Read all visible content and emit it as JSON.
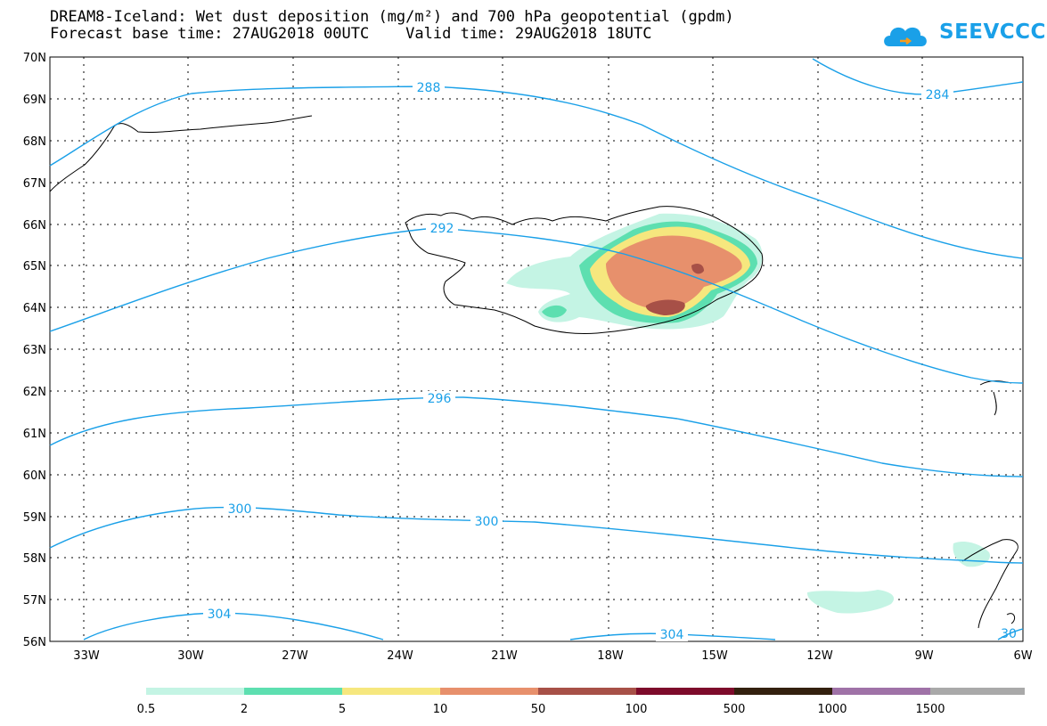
{
  "title": {
    "line1": "DREAM8-Iceland: Wet dust deposition (mg/m²) and 700 hPa geopotential (gpdm)",
    "line2": "Forecast base time: 27AUG2018 00UTC    Valid time: 29AUG2018 18UTC"
  },
  "logo": {
    "text": "SEEVCCC",
    "icon": "cloud-icon"
  },
  "axes": {
    "lat_labels": [
      "70N",
      "69N",
      "68N",
      "67N",
      "66N",
      "65N",
      "64N",
      "63N",
      "62N",
      "61N",
      "60N",
      "59N",
      "58N",
      "57N",
      "56N"
    ],
    "lon_labels": [
      "33W",
      "30W",
      "27W",
      "24W",
      "21W",
      "18W",
      "15W",
      "12W",
      "9W",
      "6W"
    ]
  },
  "contours": [
    {
      "value": "284"
    },
    {
      "value": "288"
    },
    {
      "value": "292"
    },
    {
      "value": "296"
    },
    {
      "value": "300"
    },
    {
      "value": "300"
    },
    {
      "value": "304"
    },
    {
      "value": "304"
    },
    {
      "value": "30"
    }
  ],
  "legend": {
    "labels": [
      "0.5",
      "2",
      "5",
      "10",
      "50",
      "100",
      "500",
      "1000",
      "1500"
    ],
    "colors": [
      "#c4f4e4",
      "#5ddfb0",
      "#f6e77e",
      "#e7906c",
      "#a75047",
      "#7d0b2b",
      "#33200e",
      "#9f72a7",
      "#a9a9a9"
    ]
  },
  "colors": {
    "contour": "#1aa0e8",
    "brand": "#1aa0e8"
  }
}
